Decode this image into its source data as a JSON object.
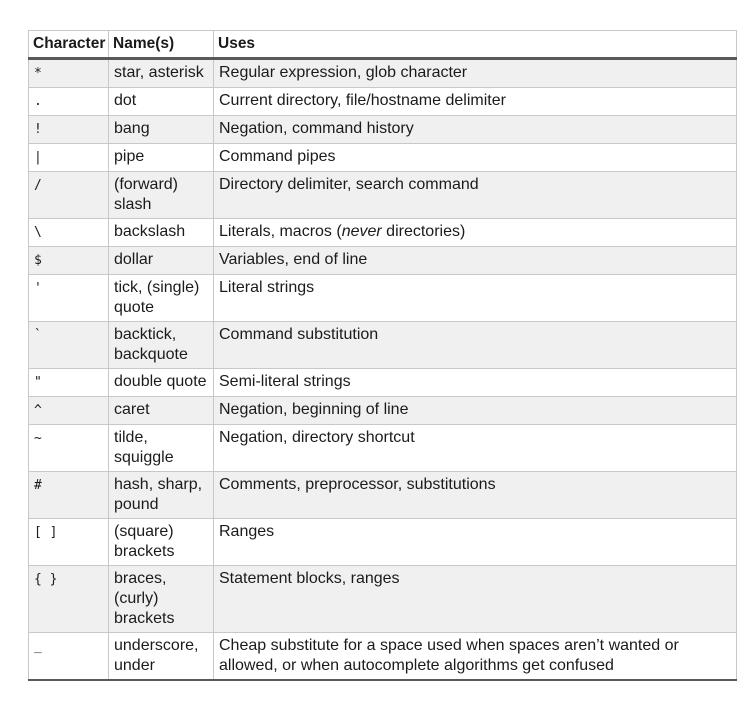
{
  "colors": {
    "stripe": "#f0f0f0",
    "border_light": "#c8c8c8",
    "border_heavy": "#595959",
    "text": "#1b1b1b",
    "background": "#ffffff"
  },
  "table": {
    "headers": [
      "Character",
      "Name(s)",
      "Uses"
    ],
    "rows": [
      {
        "char": "*",
        "names": "star, asterisk",
        "uses": [
          "Regular expression, glob character",
          "",
          ""
        ]
      },
      {
        "char": ".",
        "names": "dot",
        "uses": [
          "Current directory, file/hostname delimiter",
          "",
          ""
        ]
      },
      {
        "char": "!",
        "names": "bang",
        "uses": [
          "Negation, command history",
          "",
          ""
        ]
      },
      {
        "char": "|",
        "names": "pipe",
        "uses": [
          "Command pipes",
          "",
          ""
        ]
      },
      {
        "char": "/",
        "names": "(forward) slash",
        "uses": [
          "Directory delimiter, search command",
          "",
          ""
        ]
      },
      {
        "char": "\\",
        "names": "backslash",
        "uses": [
          "Literals, macros (",
          "never",
          " directories)"
        ]
      },
      {
        "char": "$",
        "names": "dollar",
        "uses": [
          "Variables, end of line",
          "",
          ""
        ]
      },
      {
        "char": "'",
        "names": "tick, (single) quote",
        "uses": [
          "Literal strings",
          "",
          ""
        ]
      },
      {
        "char": "`",
        "names": "backtick, backquote",
        "uses": [
          "Command substitution",
          "",
          ""
        ]
      },
      {
        "char": "\"",
        "names": "double quote",
        "uses": [
          "Semi-literal strings",
          "",
          ""
        ]
      },
      {
        "char": "^",
        "names": "caret",
        "uses": [
          "Negation, beginning of line",
          "",
          ""
        ]
      },
      {
        "char": "~",
        "names": "tilde, squiggle",
        "uses": [
          "Negation, directory shortcut",
          "",
          ""
        ]
      },
      {
        "char": "#",
        "names": "hash, sharp, pound",
        "uses": [
          "Comments, preprocessor, substitutions",
          "",
          ""
        ]
      },
      {
        "char": "[ ]",
        "names": "(square) brackets",
        "uses": [
          "Ranges",
          "",
          ""
        ]
      },
      {
        "char": "{ }",
        "names": "braces, (curly) brackets",
        "uses": [
          "Statement blocks, ranges",
          "",
          ""
        ]
      },
      {
        "char": "_",
        "names": "underscore, under",
        "uses": [
          "Cheap substitute for a space used when spaces aren’t wanted or allowed, or when autocomplete algorithms get confused",
          "",
          ""
        ]
      }
    ]
  }
}
